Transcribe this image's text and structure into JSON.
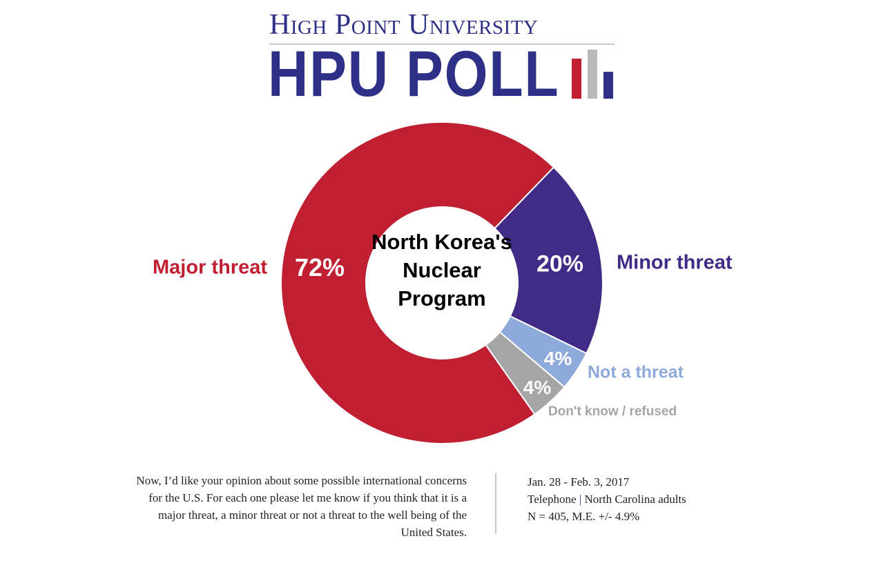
{
  "logo": {
    "university": "High Point University",
    "poll": "HPU POLL",
    "colors": {
      "navy": "#2e2f86",
      "red": "#c01f32",
      "gray": "#b9b9b9"
    }
  },
  "chart_data": {
    "type": "pie",
    "donut": true,
    "title": "North Korea's Nuclear Program",
    "categories": [
      "Minor threat",
      "Not a threat",
      "Don't know / refused",
      "Major threat"
    ],
    "values": [
      20,
      4,
      4,
      72
    ],
    "value_labels": [
      "20%",
      "4%",
      "4%",
      "72%"
    ],
    "colors": [
      "#412b87",
      "#8eaadb",
      "#a5a5a5",
      "#c01f32"
    ],
    "start_angle_deg": 44
  },
  "footer": {
    "question": "Now, I’d like your opinion about some possible international concerns for the U.S. For each one please let me know if you think that it is a major threat, a minor threat or not a threat to the well being of the United States.",
    "dates": "Jan. 28 - Feb. 3, 2017",
    "method": "Telephone",
    "separator": "|",
    "population": "North Carolina adults",
    "sample": "N = 405, M.E. +/- 4.9%"
  }
}
